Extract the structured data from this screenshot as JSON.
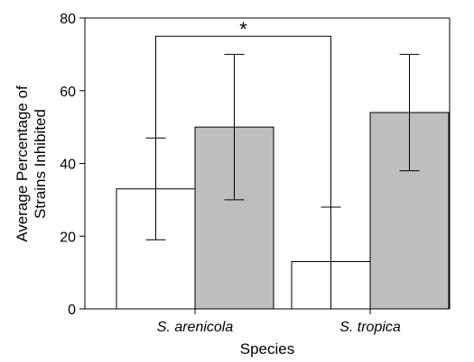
{
  "chart_data": {
    "type": "bar",
    "title": "",
    "xlabel": "Species",
    "ylabel_lines": [
      "Average Percentage of",
      "Strains Inhibited"
    ],
    "categories": [
      "S. arenicola",
      "S. tropica"
    ],
    "series": [
      {
        "values": [
          33,
          13
        ],
        "err_low": [
          19,
          0
        ],
        "err_high": [
          47,
          28
        ],
        "color": "#ffffff"
      },
      {
        "values": [
          50,
          54
        ],
        "err_low": [
          30,
          38
        ],
        "err_high": [
          70,
          70
        ],
        "color": "#bebebe"
      }
    ],
    "ylim": [
      0,
      80
    ],
    "yticks": [
      0,
      20,
      40,
      60,
      80
    ],
    "grid": false,
    "annotation": {
      "text": "*",
      "bracket_from": [
        47,
        28
      ],
      "bracket_top": 75
    }
  }
}
